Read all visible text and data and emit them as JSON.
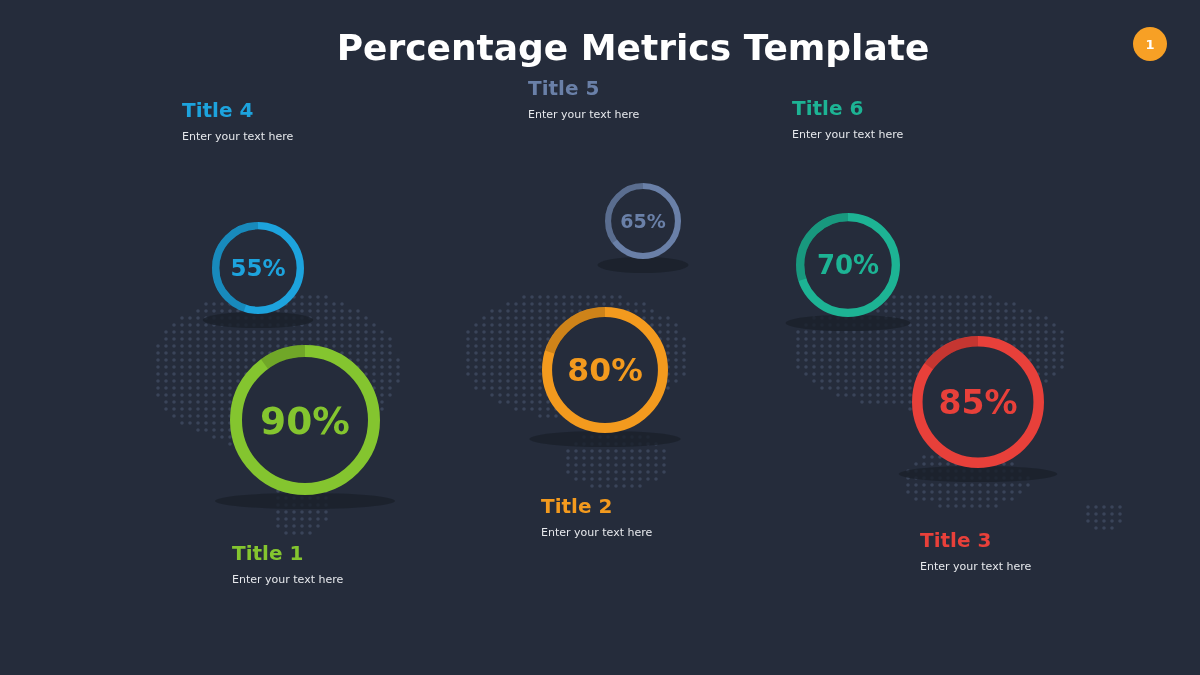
{
  "chart_data": {
    "type": "other",
    "title": "Percentage Metrics Template",
    "categories": [
      "Title 1",
      "Title 2",
      "Title 3",
      "Title 4",
      "Title 5",
      "Title 6"
    ],
    "values": [
      90,
      80,
      85,
      55,
      65,
      70
    ],
    "value_labels": [
      "90%",
      "80%",
      "85%",
      "55%",
      "65%",
      "70%"
    ],
    "colors": [
      "#84c52f",
      "#f39a1e",
      "#e8403a",
      "#1da3dd",
      "#6a80a8",
      "#1db394"
    ],
    "annotations": [
      "Enter your text here",
      "Enter your text here",
      "Enter your text here",
      "Enter your text here",
      "Enter your text here",
      "Enter your text here",
      "1"
    ]
  }
}
